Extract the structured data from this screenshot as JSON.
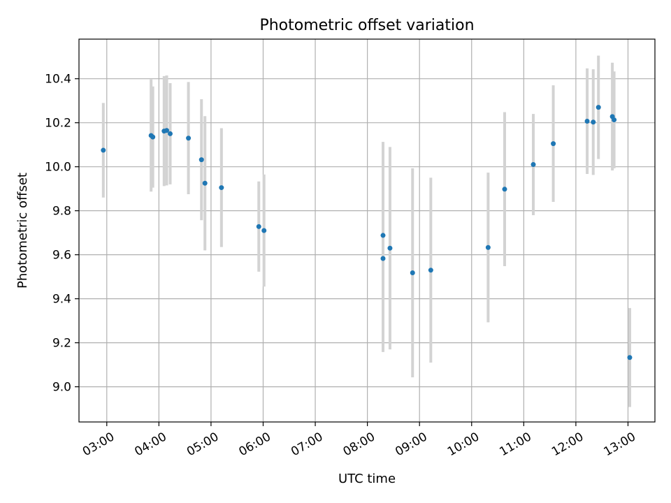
{
  "chart_data": {
    "type": "scatter",
    "title": "Photometric offset variation",
    "xlabel": "UTC time",
    "ylabel": "Photometric offset",
    "x_unit": "UTC time (HH:MM)",
    "xlim": [
      "02:28",
      "13:31"
    ],
    "ylim": [
      8.84,
      10.58
    ],
    "x_ticks": [
      "03:00",
      "04:00",
      "05:00",
      "06:00",
      "07:00",
      "08:00",
      "09:00",
      "10:00",
      "11:00",
      "12:00",
      "13:00"
    ],
    "y_ticks": [
      9.0,
      9.2,
      9.4,
      9.6,
      9.8,
      10.0,
      10.2,
      10.4
    ],
    "y_tick_labels": [
      "9.0",
      "9.2",
      "9.4",
      "9.6",
      "9.8",
      "10.0",
      "10.2",
      "10.4"
    ],
    "grid": true,
    "legend": false,
    "series": [
      {
        "marker_color": "#1f77b4",
        "errorbar_color": "#d3d3d3",
        "points": [
          {
            "x": "02:56",
            "y": 10.075,
            "err": 0.215
          },
          {
            "x": "03:51",
            "y": 10.142,
            "err": 0.255
          },
          {
            "x": "03:53",
            "y": 10.135,
            "err": 0.23
          },
          {
            "x": "04:06",
            "y": 10.162,
            "err": 0.25
          },
          {
            "x": "04:09",
            "y": 10.165,
            "err": 0.25
          },
          {
            "x": "04:13",
            "y": 10.15,
            "err": 0.23
          },
          {
            "x": "04:34",
            "y": 10.13,
            "err": 0.255
          },
          {
            "x": "04:49",
            "y": 10.032,
            "err": 0.275
          },
          {
            "x": "04:53",
            "y": 9.925,
            "err": 0.305
          },
          {
            "x": "05:12",
            "y": 9.905,
            "err": 0.27
          },
          {
            "x": "05:55",
            "y": 9.728,
            "err": 0.205
          },
          {
            "x": "06:01",
            "y": 9.71,
            "err": 0.255
          },
          {
            "x": "08:18",
            "y": 9.688,
            "err": 0.425
          },
          {
            "x": "08:18",
            "y": 9.583,
            "err": 0.425
          },
          {
            "x": "08:26",
            "y": 9.63,
            "err": 0.46
          },
          {
            "x": "08:52",
            "y": 9.518,
            "err": 0.475
          },
          {
            "x": "09:13",
            "y": 9.53,
            "err": 0.42
          },
          {
            "x": "10:19",
            "y": 9.633,
            "err": 0.34
          },
          {
            "x": "10:38",
            "y": 9.898,
            "err": 0.35
          },
          {
            "x": "11:11",
            "y": 10.01,
            "err": 0.23
          },
          {
            "x": "11:34",
            "y": 10.105,
            "err": 0.265
          },
          {
            "x": "12:13",
            "y": 10.207,
            "err": 0.24
          },
          {
            "x": "12:20",
            "y": 10.203,
            "err": 0.24
          },
          {
            "x": "12:26",
            "y": 10.27,
            "err": 0.235
          },
          {
            "x": "12:42",
            "y": 10.228,
            "err": 0.245
          },
          {
            "x": "12:44",
            "y": 10.213,
            "err": 0.22
          },
          {
            "x": "13:02",
            "y": 9.133,
            "err": 0.225
          }
        ]
      }
    ]
  }
}
